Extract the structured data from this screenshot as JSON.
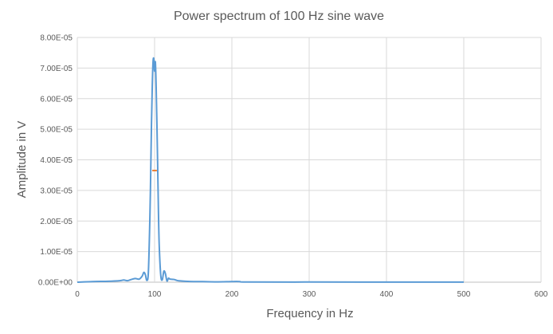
{
  "chart_data": {
    "type": "line",
    "title": "Power spectrum of 100 Hz sine wave",
    "xlabel": "Frequency in Hz",
    "ylabel": "Amplitude in V",
    "xlim": [
      0,
      600
    ],
    "ylim": [
      0,
      8e-05
    ],
    "x_ticks": [
      0,
      100,
      200,
      300,
      400,
      500,
      600
    ],
    "x_tick_labels": [
      "0",
      "100",
      "200",
      "300",
      "400",
      "500",
      "600"
    ],
    "y_ticks": [
      0,
      1e-05,
      2e-05,
      3e-05,
      4e-05,
      5e-05,
      6e-05,
      7e-05,
      8e-05
    ],
    "y_tick_labels": [
      "0.00E+00",
      "1.00E-05",
      "2.00E-05",
      "3.00E-05",
      "4.00E-05",
      "5.00E-05",
      "6.00E-05",
      "7.00E-05",
      "8.00E-05"
    ],
    "grid": true,
    "legend": "none",
    "series": [
      {
        "color": "#5b9bd5",
        "x": [
          0,
          20,
          40,
          55,
          60,
          65,
          70,
          75,
          80,
          84,
          86,
          88,
          90,
          92,
          94,
          95,
          96,
          97,
          98,
          99,
          100,
          101,
          102,
          103,
          104,
          105,
          106,
          108,
          110,
          112,
          114,
          116,
          118,
          120,
          125,
          130,
          135,
          140,
          150,
          160,
          180,
          200,
          210,
          220,
          300,
          400,
          500
        ],
        "y": [
          0,
          2e-07,
          3e-07,
          5e-07,
          7e-07,
          5e-07,
          9e-07,
          1.2e-06,
          1e-06,
          2e-06,
          3.2e-06,
          2.5e-06,
          6e-07,
          3.5e-06,
          2.2e-05,
          3.6e-05,
          5.2e-05,
          6.4e-05,
          7.2e-05,
          7.3e-05,
          6.9e-05,
          7.2e-05,
          6.4e-05,
          5.2e-05,
          3.8e-05,
          2.3e-05,
          1.2e-05,
          2.2e-06,
          8e-07,
          3.6e-06,
          2.8e-06,
          4e-07,
          1.3e-06,
          1e-06,
          9e-07,
          5e-07,
          4e-07,
          3e-07,
          2e-07,
          2e-07,
          1e-07,
          2e-07,
          2e-07,
          5e-08,
          5e-08,
          3e-08,
          2e-08
        ]
      }
    ],
    "annotations": [
      {
        "type": "marker",
        "color": "#ed7d31",
        "x": 100,
        "y": 3.65e-05,
        "half_width": 3
      }
    ]
  }
}
